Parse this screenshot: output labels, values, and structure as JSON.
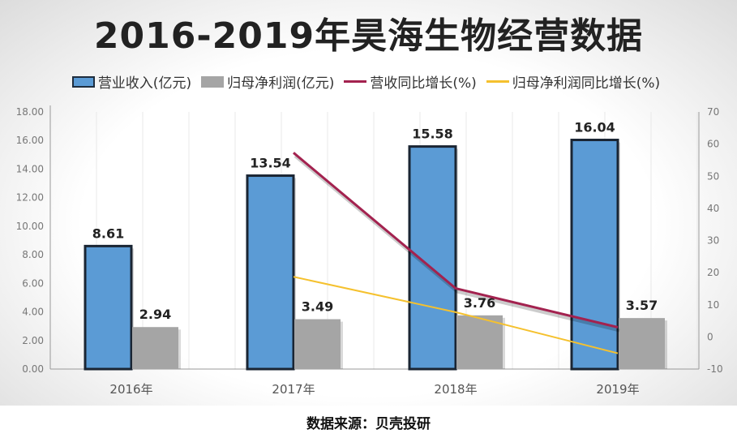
{
  "chart_data": {
    "type": "bar",
    "title": "2016-2019年昊海生物经营数据",
    "categories": [
      "2016年",
      "2017年",
      "2018年",
      "2019年"
    ],
    "series": [
      {
        "name": "营业收入(亿元)",
        "type": "bar",
        "axis": "left",
        "color": "#5b9bd5",
        "values": [
          8.61,
          13.54,
          15.58,
          16.04
        ],
        "labels": [
          "8.61",
          "13.54",
          "15.58",
          "16.04"
        ]
      },
      {
        "name": "归母净利润(亿元)",
        "type": "bar",
        "axis": "left",
        "color": "#a5a5a5",
        "values": [
          2.94,
          3.49,
          3.76,
          3.57
        ],
        "labels": [
          "2.94",
          "3.49",
          "3.76",
          "3.57"
        ]
      },
      {
        "name": "营收同比增长(%)",
        "type": "line",
        "axis": "right",
        "color": "#a3224f",
        "values": [
          null,
          57.3,
          15.1,
          3.0
        ]
      },
      {
        "name": "归母净利润同比增长(%)",
        "type": "line",
        "axis": "right",
        "color": "#f5c12e",
        "values": [
          null,
          18.7,
          7.7,
          -5.1
        ]
      }
    ],
    "left_axis": {
      "ylim": [
        0,
        18
      ],
      "ticks": [
        "0.00",
        "2.00",
        "4.00",
        "6.00",
        "8.00",
        "10.00",
        "12.00",
        "14.00",
        "16.00",
        "18.00"
      ]
    },
    "right_axis": {
      "ylim": [
        -10,
        70
      ],
      "ticks": [
        "-10",
        "0",
        "10",
        "20",
        "30",
        "40",
        "50",
        "60",
        "70"
      ]
    },
    "legend": "top",
    "grid": true
  },
  "source": "数据来源：贝壳投研"
}
